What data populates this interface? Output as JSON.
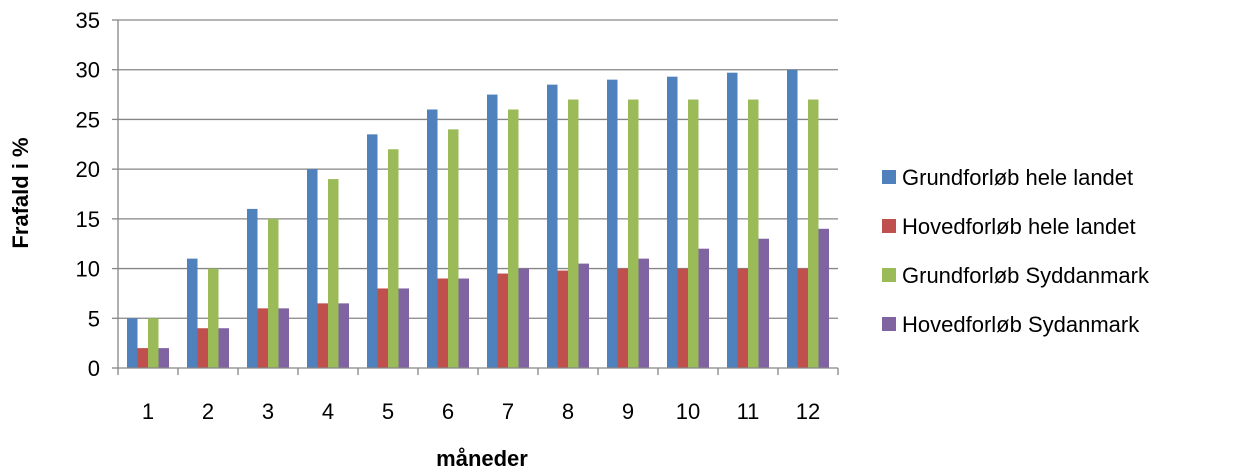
{
  "chart_data": {
    "type": "bar",
    "title": "",
    "xlabel": "måneder",
    "ylabel": "Frafald i %",
    "ylim": [
      0,
      35
    ],
    "yticks": [
      0,
      5,
      10,
      15,
      20,
      25,
      30,
      35
    ],
    "grid": true,
    "legend_position": "right",
    "categories": [
      "1",
      "2",
      "3",
      "4",
      "5",
      "6",
      "7",
      "8",
      "9",
      "10",
      "11",
      "12"
    ],
    "series": [
      {
        "name": "Grundforløb hele landet",
        "color": "#4F81BD",
        "values": [
          5,
          11,
          16,
          20,
          23.5,
          26,
          27.5,
          28.5,
          29,
          29.3,
          29.7,
          30
        ]
      },
      {
        "name": "Hovedforløb hele landet",
        "color": "#C0504D",
        "values": [
          2,
          4,
          6,
          6.5,
          8,
          9,
          9.5,
          9.8,
          10,
          10,
          10,
          10
        ]
      },
      {
        "name": "Grundforløb Syddanmark",
        "color": "#9BBB59",
        "values": [
          5,
          10,
          15,
          19,
          22,
          24,
          26,
          27,
          27,
          27,
          27,
          27
        ]
      },
      {
        "name": "Hovedforløb Sydanmark",
        "color": "#8064A2",
        "values": [
          2,
          4,
          6,
          6.5,
          8,
          9,
          10,
          10.5,
          11,
          12,
          13,
          14
        ]
      }
    ]
  }
}
